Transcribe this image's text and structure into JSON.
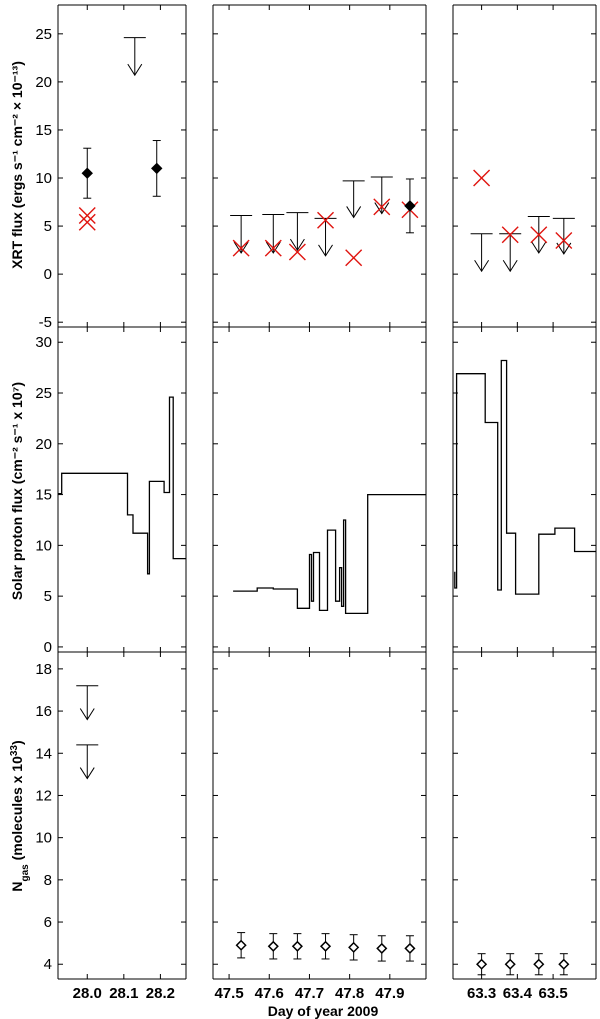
{
  "chart_data": {
    "type": "scatter",
    "xlabel": "Day of year 2009",
    "column_xlim": [
      [
        27.92,
        28.27
      ],
      [
        47.46,
        47.99
      ],
      [
        63.22,
        63.62
      ]
    ],
    "xticks": [
      {
        "col": 0,
        "value": 28.0,
        "label": "28.0"
      },
      {
        "col": 0,
        "value": 28.1,
        "label": "28.1"
      },
      {
        "col": 0,
        "value": 28.2,
        "label": "28.2"
      },
      {
        "col": 1,
        "value": 47.5,
        "label": "47.5"
      },
      {
        "col": 1,
        "value": 47.6,
        "label": "47.6"
      },
      {
        "col": 1,
        "value": 47.7,
        "label": "47.7"
      },
      {
        "col": 1,
        "value": 47.8,
        "label": "47.8"
      },
      {
        "col": 1,
        "value": 47.9,
        "label": "47.9"
      },
      {
        "col": 2,
        "value": 63.3,
        "label": "63.3"
      },
      {
        "col": 2,
        "value": 63.4,
        "label": "63.4"
      },
      {
        "col": 2,
        "value": 63.5,
        "label": "63.5"
      }
    ],
    "rows": [
      {
        "name": "xrt",
        "ylabel": "XRT flux (ergs s⁻¹ cm⁻² × 10⁻¹³)",
        "ylim": [
          -5.5,
          28
        ],
        "yticks": [
          {
            "value": 25,
            "label": "25"
          },
          {
            "value": 20,
            "label": "20"
          },
          {
            "value": 15,
            "label": "15"
          },
          {
            "value": 10,
            "label": "10"
          },
          {
            "value": 5,
            "label": "5"
          },
          {
            "value": 0,
            "label": "0"
          },
          {
            "value": -5,
            "label": "-5"
          }
        ],
        "detections": [
          {
            "x": 28.0,
            "y": 10.5,
            "lo": 7.9,
            "hi": 13.1
          },
          {
            "x": 28.19,
            "y": 11.0,
            "lo": 8.1,
            "hi": 13.9
          },
          {
            "x": 47.95,
            "y": 7.1,
            "lo": 4.3,
            "hi": 9.9
          }
        ],
        "upper_limits": [
          {
            "x": 28.13,
            "y": 24.6,
            "arrow_to": 20.7
          },
          {
            "x": 47.53,
            "y": 6.1,
            "arrow_to": 2.2
          },
          {
            "x": 47.61,
            "y": 6.2,
            "arrow_to": 2.2
          },
          {
            "x": 47.67,
            "y": 6.4,
            "arrow_to": 2.5
          },
          {
            "x": 47.74,
            "y": 5.8,
            "arrow_to": 1.9
          },
          {
            "x": 47.81,
            "y": 9.7,
            "arrow_to": 5.9
          },
          {
            "x": 47.88,
            "y": 10.1,
            "arrow_to": 6.3
          },
          {
            "x": 63.3,
            "y": 4.2,
            "arrow_to": 0.3
          },
          {
            "x": 63.38,
            "y": 4.2,
            "arrow_to": 0.3
          },
          {
            "x": 63.46,
            "y": 6.0,
            "arrow_to": 2.2
          },
          {
            "x": 63.53,
            "y": 5.8,
            "arrow_to": 2.1
          }
        ],
        "model_crosses": [
          {
            "x": 28.0,
            "y": 6.1
          },
          {
            "x": 28.0,
            "y": 5.4
          },
          {
            "x": 47.53,
            "y": 2.7
          },
          {
            "x": 47.61,
            "y": 2.7
          },
          {
            "x": 47.67,
            "y": 2.3
          },
          {
            "x": 47.74,
            "y": 5.6
          },
          {
            "x": 47.81,
            "y": 1.7
          },
          {
            "x": 47.88,
            "y": 7.0
          },
          {
            "x": 47.95,
            "y": 6.7
          },
          {
            "x": 63.3,
            "y": 10.0
          },
          {
            "x": 63.38,
            "y": 4.1
          },
          {
            "x": 63.46,
            "y": 4.1
          },
          {
            "x": 63.53,
            "y": 3.5
          }
        ]
      },
      {
        "name": "proton",
        "ylabel": "Solar proton flux (cm⁻² s⁻¹ x 10⁷)",
        "ylim": [
          -0.5,
          31.5
        ],
        "yticks": [
          {
            "value": 30,
            "label": "30"
          },
          {
            "value": 25,
            "label": "25"
          },
          {
            "value": 20,
            "label": "20"
          },
          {
            "value": 15,
            "label": "15"
          },
          {
            "value": 10,
            "label": "10"
          },
          {
            "value": 5,
            "label": "5"
          },
          {
            "value": 0,
            "label": "0"
          }
        ],
        "step_series": [
          {
            "col": 0,
            "points": [
              [
                27.92,
                15.1
              ],
              [
                27.93,
                15.1
              ],
              [
                27.93,
                17.1
              ],
              [
                28.11,
                17.1
              ],
              [
                28.11,
                13.0
              ],
              [
                28.125,
                13.0
              ],
              [
                28.125,
                11.2
              ],
              [
                28.165,
                11.2
              ],
              [
                28.165,
                7.2
              ],
              [
                28.17,
                7.2
              ],
              [
                28.17,
                16.3
              ],
              [
                28.21,
                16.3
              ],
              [
                28.21,
                15.2
              ],
              [
                28.225,
                15.2
              ],
              [
                28.225,
                24.6
              ],
              [
                28.235,
                24.6
              ],
              [
                28.235,
                8.7
              ],
              [
                28.27,
                8.7
              ]
            ]
          },
          {
            "col": 1,
            "points": [
              [
                47.51,
                5.5
              ],
              [
                47.57,
                5.5
              ],
              [
                47.57,
                5.8
              ],
              [
                47.61,
                5.8
              ],
              [
                47.61,
                5.7
              ],
              [
                47.67,
                5.7
              ],
              [
                47.67,
                3.8
              ],
              [
                47.7,
                3.8
              ],
              [
                47.7,
                9.1
              ],
              [
                47.705,
                9.1
              ],
              [
                47.705,
                4.5
              ],
              [
                47.71,
                4.5
              ],
              [
                47.71,
                9.3
              ],
              [
                47.725,
                9.3
              ],
              [
                47.725,
                3.6
              ],
              [
                47.745,
                3.6
              ],
              [
                47.745,
                11.5
              ],
              [
                47.765,
                11.5
              ],
              [
                47.765,
                4.5
              ],
              [
                47.775,
                4.5
              ],
              [
                47.775,
                7.8
              ],
              [
                47.78,
                7.8
              ],
              [
                47.78,
                4.0
              ],
              [
                47.785,
                4.0
              ],
              [
                47.785,
                12.5
              ],
              [
                47.79,
                12.5
              ],
              [
                47.79,
                3.3
              ],
              [
                47.845,
                3.3
              ],
              [
                47.845,
                15.0
              ],
              [
                47.99,
                15.0
              ]
            ]
          },
          {
            "col": 2,
            "points": [
              [
                63.225,
                7.4
              ],
              [
                63.225,
                5.8
              ],
              [
                63.23,
                5.8
              ],
              [
                63.23,
                26.9
              ],
              [
                63.31,
                26.9
              ],
              [
                63.31,
                22.1
              ],
              [
                63.345,
                22.1
              ],
              [
                63.345,
                5.6
              ],
              [
                63.355,
                5.6
              ],
              [
                63.355,
                28.2
              ],
              [
                63.37,
                28.2
              ],
              [
                63.37,
                11.2
              ],
              [
                63.395,
                11.2
              ],
              [
                63.395,
                5.2
              ],
              [
                63.46,
                5.2
              ],
              [
                63.46,
                11.1
              ],
              [
                63.505,
                11.1
              ],
              [
                63.505,
                11.7
              ],
              [
                63.56,
                11.7
              ],
              [
                63.56,
                9.4
              ],
              [
                63.62,
                9.4
              ]
            ]
          }
        ]
      },
      {
        "name": "ngas",
        "ylabel": "N_gas (molecules x 10³³)",
        "ylabel_main": "N",
        "ylabel_sub": "gas",
        "ylabel_rest": " (molecules x 10",
        "ylabel_sup": "33",
        "ylabel_end": ")",
        "ylim": [
          3.3,
          18.8
        ],
        "yticks": [
          {
            "value": 18,
            "label": "18"
          },
          {
            "value": 16,
            "label": "16"
          },
          {
            "value": 14,
            "label": "14"
          },
          {
            "value": 12,
            "label": "12"
          },
          {
            "value": 10,
            "label": "10"
          },
          {
            "value": 8,
            "label": "8"
          },
          {
            "value": 6,
            "label": "6"
          },
          {
            "value": 4,
            "label": "4"
          }
        ],
        "upper_limits": [
          {
            "x": 28.0,
            "y": 17.2,
            "arrow_to": 15.6
          },
          {
            "x": 28.0,
            "y": 14.4,
            "arrow_to": 12.8
          }
        ],
        "detections": [
          {
            "x": 47.53,
            "y": 4.9,
            "lo": 4.3,
            "hi": 5.5
          },
          {
            "x": 47.61,
            "y": 4.85,
            "lo": 4.25,
            "hi": 5.45
          },
          {
            "x": 47.67,
            "y": 4.85,
            "lo": 4.25,
            "hi": 5.45
          },
          {
            "x": 47.74,
            "y": 4.85,
            "lo": 4.25,
            "hi": 5.45
          },
          {
            "x": 47.81,
            "y": 4.8,
            "lo": 4.2,
            "hi": 5.4
          },
          {
            "x": 47.88,
            "y": 4.75,
            "lo": 4.15,
            "hi": 5.35
          },
          {
            "x": 47.95,
            "y": 4.75,
            "lo": 4.15,
            "hi": 5.35
          },
          {
            "x": 63.3,
            "y": 4.0,
            "lo": 3.5,
            "hi": 4.5
          },
          {
            "x": 63.38,
            "y": 4.0,
            "lo": 3.5,
            "hi": 4.5
          },
          {
            "x": 63.46,
            "y": 4.0,
            "lo": 3.5,
            "hi": 4.5
          },
          {
            "x": 63.53,
            "y": 4.0,
            "lo": 3.5,
            "hi": 4.5
          }
        ]
      }
    ]
  }
}
